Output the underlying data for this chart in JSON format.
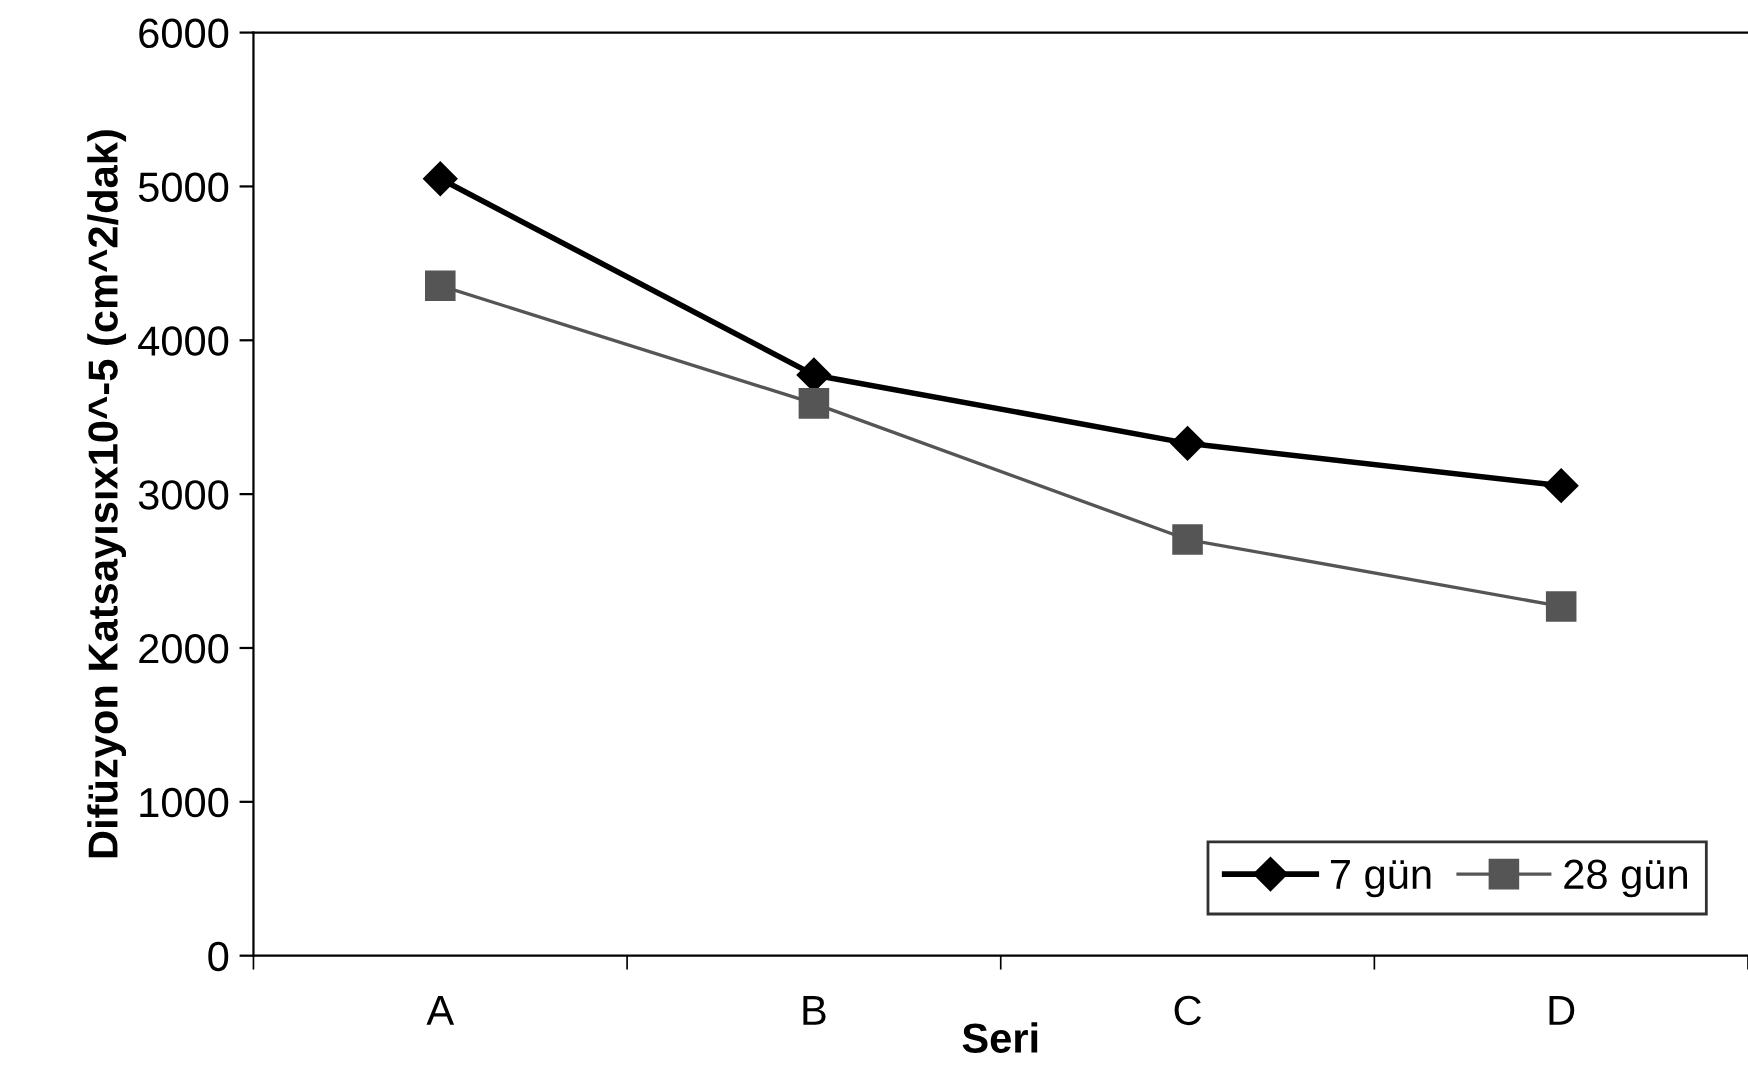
{
  "chart_data": {
    "type": "line",
    "xlabel": "Seri",
    "ylabel": "Difüzyon Katsayısıx10^-5 (cm^2/dak)",
    "categories": [
      "A",
      "B",
      "C",
      "D"
    ],
    "series": [
      {
        "name": "7 gün",
        "color": "#000000",
        "values": [
          5050,
          3775,
          3330,
          3055
        ],
        "marker": "diamond"
      },
      {
        "name": "28 gün",
        "color": "#555555",
        "values": [
          4355,
          3590,
          2705,
          2270
        ],
        "marker": "square"
      }
    ],
    "ylim": [
      0,
      6000
    ],
    "yticks": [
      0,
      1000,
      2000,
      3000,
      4000,
      5000,
      6000
    ],
    "grid": false,
    "legend": "bottom right",
    "line_style": "solid"
  }
}
